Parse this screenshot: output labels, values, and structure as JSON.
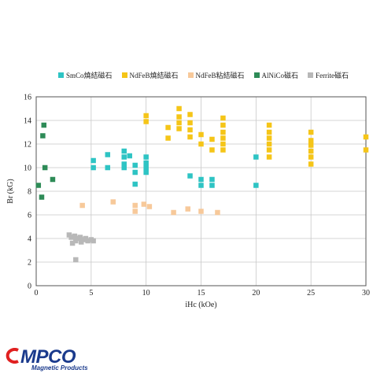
{
  "chart_data": {
    "type": "scatter",
    "xlabel": "iHc (kOe)",
    "ylabel": "Br (kG)",
    "xlim": [
      0,
      30
    ],
    "ylim": [
      0,
      16
    ],
    "xticks": [
      0,
      5,
      10,
      15,
      20,
      25,
      30
    ],
    "yticks": [
      0,
      2,
      4,
      6,
      8,
      10,
      12,
      14,
      16
    ],
    "grid": true,
    "legend_position": "top",
    "series": [
      {
        "name": "SmCo燒結磁石",
        "color": "#2ec4c4",
        "points": [
          [
            5.2,
            10.6
          ],
          [
            5.2,
            10.0
          ],
          [
            6.5,
            11.1
          ],
          [
            6.5,
            10.0
          ],
          [
            8,
            11.4
          ],
          [
            8,
            10.9
          ],
          [
            8,
            10.3
          ],
          [
            8,
            10.0
          ],
          [
            8.5,
            11.0
          ],
          [
            9,
            10.2
          ],
          [
            9,
            9.6
          ],
          [
            9,
            8.6
          ],
          [
            10,
            10.9
          ],
          [
            10,
            10.4
          ],
          [
            10,
            10.0
          ],
          [
            10,
            9.6
          ],
          [
            14,
            9.3
          ],
          [
            15,
            9.0
          ],
          [
            15,
            8.5
          ],
          [
            16,
            9.0
          ],
          [
            16,
            8.5
          ],
          [
            20,
            10.9
          ],
          [
            20,
            8.5
          ]
        ]
      },
      {
        "name": "NdFeB燒結磁石",
        "color": "#f5c518",
        "points": [
          [
            10,
            14.4
          ],
          [
            10,
            13.9
          ],
          [
            12,
            13.4
          ],
          [
            12,
            12.5
          ],
          [
            13,
            15.0
          ],
          [
            13,
            14.3
          ],
          [
            13,
            13.8
          ],
          [
            13,
            13.3
          ],
          [
            14,
            14.5
          ],
          [
            14,
            13.8
          ],
          [
            14,
            13.2
          ],
          [
            14,
            12.6
          ],
          [
            15,
            12.8
          ],
          [
            15,
            12.0
          ],
          [
            16,
            12.4
          ],
          [
            16,
            11.5
          ],
          [
            17,
            14.2
          ],
          [
            17,
            13.6
          ],
          [
            17,
            13.0
          ],
          [
            17,
            12.5
          ],
          [
            17,
            12.0
          ],
          [
            17,
            11.5
          ],
          [
            21.2,
            13.6
          ],
          [
            21.2,
            13.0
          ],
          [
            21.2,
            12.5
          ],
          [
            21.2,
            12.0
          ],
          [
            21.2,
            11.5
          ],
          [
            21.2,
            10.9
          ],
          [
            25,
            13.0
          ],
          [
            25,
            12.3
          ],
          [
            25,
            11.9
          ],
          [
            25,
            11.4
          ],
          [
            25,
            10.9
          ],
          [
            25,
            10.3
          ],
          [
            30,
            12.6
          ],
          [
            30,
            11.5
          ]
        ]
      },
      {
        "name": "NdFeB粘結磁石",
        "color": "#f7c99a",
        "points": [
          [
            4.2,
            6.8
          ],
          [
            7,
            7.1
          ],
          [
            9,
            6.8
          ],
          [
            9,
            6.3
          ],
          [
            9.8,
            6.9
          ],
          [
            10.3,
            6.7
          ],
          [
            12.5,
            6.2
          ],
          [
            13.8,
            6.5
          ],
          [
            15,
            6.3
          ],
          [
            16.5,
            6.2
          ]
        ]
      },
      {
        "name": "AlNiCo磁石",
        "color": "#2e8b57",
        "points": [
          [
            0.2,
            8.5
          ],
          [
            0.5,
            7.5
          ],
          [
            0.6,
            12.7
          ],
          [
            0.7,
            13.6
          ],
          [
            0.8,
            10.0
          ],
          [
            1.5,
            9.0
          ]
        ]
      },
      {
        "name": "Ferrite磁石",
        "color": "#b8b8b8",
        "points": [
          [
            3,
            4.3
          ],
          [
            3.2,
            4.1
          ],
          [
            3.3,
            3.6
          ],
          [
            3.5,
            4.2
          ],
          [
            3.6,
            3.8
          ],
          [
            3.8,
            4.0
          ],
          [
            4,
            4.1
          ],
          [
            4.1,
            3.7
          ],
          [
            4.3,
            3.9
          ],
          [
            4.5,
            4.0
          ],
          [
            4.7,
            3.8
          ],
          [
            5,
            3.9
          ],
          [
            5.2,
            3.8
          ],
          [
            3.6,
            2.2
          ]
        ]
      }
    ]
  },
  "logo": {
    "text": "MPCO",
    "subtitle": "Magnetic Products",
    "color": "#1a3a8c"
  }
}
